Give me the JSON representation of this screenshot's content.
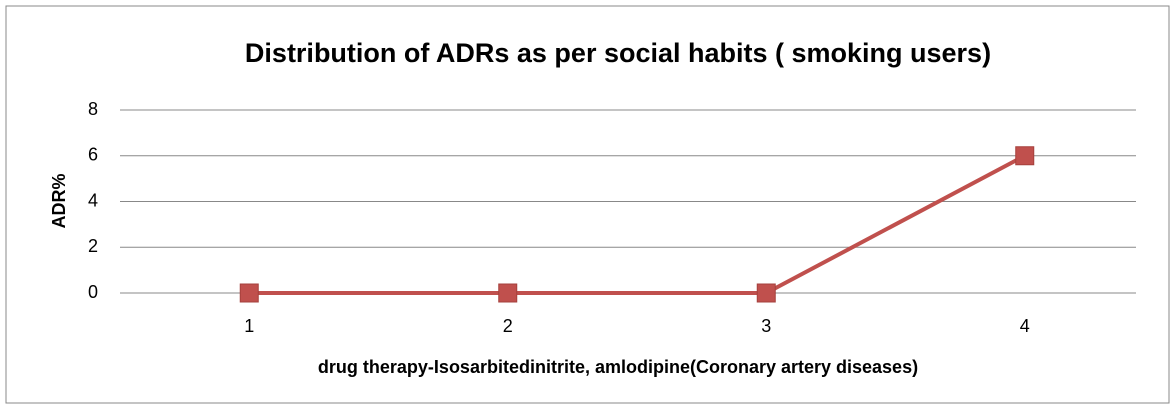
{
  "chart_data": {
    "type": "line",
    "title": "Distribution of ADRs as per social habits ( smoking users)",
    "x_label": "drug therapy-Isosarbitedinitrite, amlodipine(Coronary artery  diseases)",
    "y_label": "ADR%",
    "categories": [
      "1",
      "2",
      "3",
      "4"
    ],
    "series": [
      {
        "name": "ADR%",
        "color": "#c0504d",
        "values": [
          0,
          0,
          0,
          6
        ]
      }
    ],
    "ylim": [
      0,
      8
    ],
    "yticks": [
      0,
      2,
      4,
      6,
      8
    ],
    "grid": true
  }
}
